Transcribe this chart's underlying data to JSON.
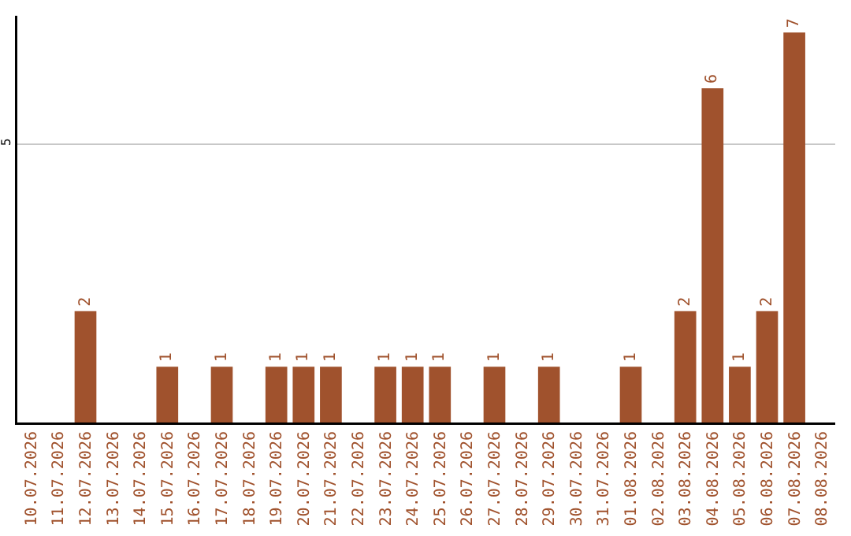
{
  "chart_data": {
    "type": "bar",
    "categories": [
      "10.07.2026",
      "11.07.2026",
      "12.07.2026",
      "13.07.2026",
      "14.07.2026",
      "15.07.2026",
      "16.07.2026",
      "17.07.2026",
      "18.07.2026",
      "19.07.2026",
      "20.07.2026",
      "21.07.2026",
      "22.07.2026",
      "23.07.2026",
      "24.07.2026",
      "25.07.2026",
      "26.07.2026",
      "27.07.2026",
      "28.07.2026",
      "29.07.2026",
      "30.07.2026",
      "31.07.2026",
      "01.08.2026",
      "02.08.2026",
      "03.08.2026",
      "04.08.2026",
      "05.08.2026",
      "06.08.2026",
      "07.08.2026",
      "08.08.2026"
    ],
    "values": [
      0,
      0,
      2,
      0,
      0,
      1,
      0,
      1,
      0,
      1,
      1,
      1,
      0,
      1,
      1,
      1,
      0,
      1,
      0,
      1,
      0,
      0,
      1,
      0,
      2,
      6,
      1,
      2,
      7,
      0
    ],
    "value_labels": [
      null,
      null,
      "2",
      null,
      null,
      "1",
      null,
      "1",
      null,
      "1",
      "1",
      "1",
      null,
      "1",
      "1",
      "1",
      null,
      "1",
      null,
      "1",
      null,
      null,
      "1",
      null,
      "2",
      "6",
      "1",
      "2",
      "7",
      null
    ],
    "color": "#a0522d",
    "ylim": [
      0,
      7.3
    ],
    "yticks": [
      5
    ],
    "grid": "y",
    "legend": false
  }
}
